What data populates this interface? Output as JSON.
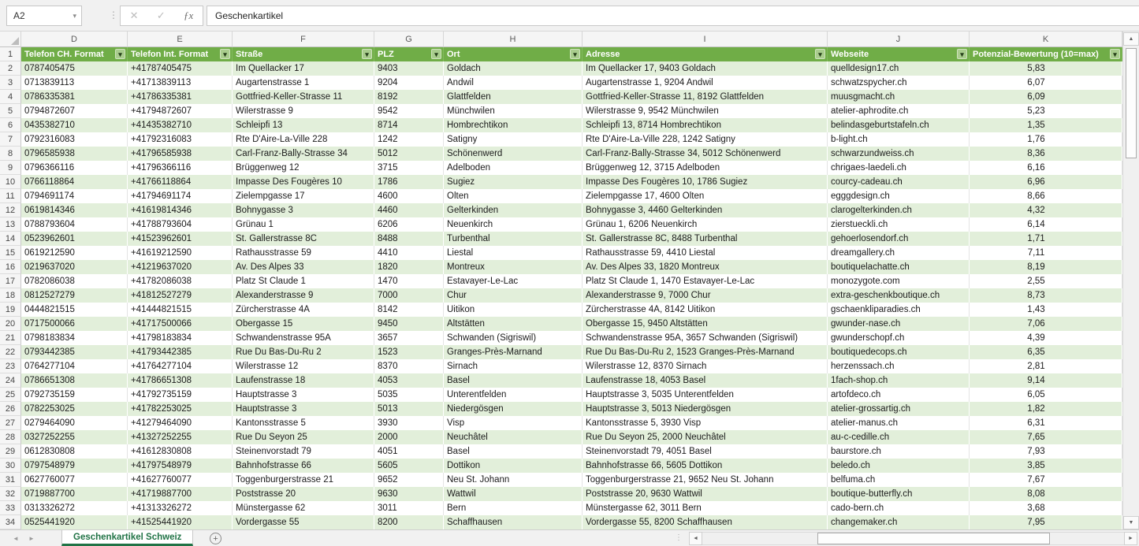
{
  "formula_bar": {
    "name_box": "A2",
    "formula": "Geschenkartikel"
  },
  "icons": {
    "name_box_dropdown": "▾",
    "separator_dots": "⋮",
    "cancel": "✕",
    "confirm": "✓",
    "fx": "ƒx",
    "filter_dropdown": "▾",
    "sheet_nav_left": "◄",
    "sheet_nav_right": "►",
    "add_sheet": "+",
    "scroll_up": "▲",
    "scroll_down": "▼",
    "scroll_left": "◄",
    "scroll_right": "►",
    "grip_dots": "⋮"
  },
  "colors": {
    "table_header_green": "#70AD47",
    "band_green": "#E2EFDA",
    "active_tab_green": "#217346"
  },
  "sheet_tabs": {
    "active": "Geschenkartikel Schweiz"
  },
  "grid": {
    "column_letters": [
      "D",
      "E",
      "F",
      "G",
      "H",
      "I",
      "J",
      "K"
    ],
    "headers": [
      "Telefon CH. Format",
      "Telefon Int. Format",
      "Straße",
      "PLZ",
      "Ort",
      "Adresse",
      "Webseite",
      "Potenzial-Bewertung (10=max)"
    ],
    "rows": [
      [
        "0787405475",
        "+41787405475",
        "Im Quellacker 17",
        "9403",
        "Goldach",
        "Im Quellacker 17, 9403 Goldach",
        "quelldesign17.ch",
        "5,83"
      ],
      [
        "0713839113",
        "+41713839113",
        "Augartenstrasse 1",
        "9204",
        "Andwil",
        "Augartenstrasse 1, 9204 Andwil",
        "schwatzspycher.ch",
        "6,07"
      ],
      [
        "0786335381",
        "+41786335381",
        "Gottfried-Keller-Strasse 11",
        "8192",
        "Glattfelden",
        "Gottfried-Keller-Strasse 11, 8192 Glattfelden",
        "muusgmacht.ch",
        "6,09"
      ],
      [
        "0794872607",
        "+41794872607",
        "Wilerstrasse 9",
        "9542",
        "Münchwilen",
        "Wilerstrasse 9, 9542 Münchwilen",
        "atelier-aphrodite.ch",
        "5,23"
      ],
      [
        "0435382710",
        "+41435382710",
        "Schleipfi 13",
        "8714",
        "Hombrechtikon",
        "Schleipfi 13, 8714 Hombrechtikon",
        "belindasgeburtstafeln.ch",
        "1,35"
      ],
      [
        "0792316083",
        "+41792316083",
        "Rte D'Aire-La-Ville 228",
        "1242",
        "Satigny",
        "Rte D'Aire-La-Ville 228, 1242 Satigny",
        "b-light.ch",
        "1,76"
      ],
      [
        "0796585938",
        "+41796585938",
        "Carl-Franz-Bally-Strasse 34",
        "5012",
        "Schönenwerd",
        "Carl-Franz-Bally-Strasse 34, 5012 Schönenwerd",
        "schwarzundweiss.ch",
        "8,36"
      ],
      [
        "0796366116",
        "+41796366116",
        "Brüggenweg 12",
        "3715",
        "Adelboden",
        "Brüggenweg 12, 3715 Adelboden",
        "chrigaes-laedeli.ch",
        "6,16"
      ],
      [
        "0766118864",
        "+41766118864",
        "Impasse Des Fougères 10",
        "1786",
        "Sugiez",
        "Impasse Des Fougères 10, 1786 Sugiez",
        "courcy-cadeau.ch",
        "6,96"
      ],
      [
        "0794691174",
        "+41794691174",
        "Zielempgasse 17",
        "4600",
        "Olten",
        "Zielempgasse 17, 4600 Olten",
        "egggdesign.ch",
        "8,66"
      ],
      [
        "0619814346",
        "+41619814346",
        "Bohnygasse 3",
        "4460",
        "Gelterkinden",
        "Bohnygasse 3, 4460 Gelterkinden",
        "clarogelterkinden.ch",
        "4,32"
      ],
      [
        "0788793604",
        "+41788793604",
        "Grünau 1",
        "6206",
        "Neuenkirch",
        "Grünau 1, 6206 Neuenkirch",
        "zierstueckli.ch",
        "6,14"
      ],
      [
        "0523962601",
        "+41523962601",
        "St. Gallerstrasse 8C",
        "8488",
        "Turbenthal",
        "St. Gallerstrasse 8C, 8488 Turbenthal",
        "gehoerlosendorf.ch",
        "1,71"
      ],
      [
        "0619212590",
        "+41619212590",
        "Rathausstrasse 59",
        "4410",
        "Liestal",
        "Rathausstrasse 59, 4410 Liestal",
        "dreamgallery.ch",
        "7,11"
      ],
      [
        "0219637020",
        "+41219637020",
        "Av. Des Alpes 33",
        "1820",
        "Montreux",
        "Av. Des Alpes 33, 1820 Montreux",
        "boutiquelachatte.ch",
        "8,19"
      ],
      [
        "0782086038",
        "+41782086038",
        "Platz St Claude 1",
        "1470",
        "Estavayer-Le-Lac",
        "Platz St Claude 1, 1470 Estavayer-Le-Lac",
        "monozygote.com",
        "2,55"
      ],
      [
        "0812527279",
        "+41812527279",
        "Alexanderstrasse 9",
        "7000",
        "Chur",
        "Alexanderstrasse 9, 7000 Chur",
        "extra-geschenkboutique.ch",
        "8,73"
      ],
      [
        "0444821515",
        "+41444821515",
        "Zürcherstrasse 4A",
        "8142",
        "Uitikon",
        "Zürcherstrasse 4A, 8142 Uitikon",
        "gschaenkliparadies.ch",
        "1,43"
      ],
      [
        "0717500066",
        "+41717500066",
        "Obergasse 15",
        "9450",
        "Altstätten",
        "Obergasse 15, 9450 Altstätten",
        "gwunder-nase.ch",
        "7,06"
      ],
      [
        "0798183834",
        "+41798183834",
        "Schwandenstrasse 95A",
        "3657",
        "Schwanden (Sigriswil)",
        "Schwandenstrasse 95A, 3657 Schwanden (Sigriswil)",
        "gwunderschopf.ch",
        "4,39"
      ],
      [
        "0793442385",
        "+41793442385",
        "Rue Du Bas-Du-Ru 2",
        "1523",
        "Granges-Près-Marnand",
        "Rue Du Bas-Du-Ru 2, 1523 Granges-Près-Marnand",
        "boutiquedecops.ch",
        "6,35"
      ],
      [
        "0764277104",
        "+41764277104",
        "Wilerstrasse 12",
        "8370",
        "Sirnach",
        "Wilerstrasse 12, 8370 Sirnach",
        "herzenssach.ch",
        "2,81"
      ],
      [
        "0786651308",
        "+41786651308",
        "Laufenstrasse 18",
        "4053",
        "Basel",
        "Laufenstrasse 18, 4053 Basel",
        "1fach-shop.ch",
        "9,14"
      ],
      [
        "0792735159",
        "+41792735159",
        "Hauptstrasse 3",
        "5035",
        "Unterentfelden",
        "Hauptstrasse 3, 5035 Unterentfelden",
        "artofdeco.ch",
        "6,05"
      ],
      [
        "0782253025",
        "+41782253025",
        "Hauptstrasse 3",
        "5013",
        "Niedergösgen",
        "Hauptstrasse 3, 5013 Niedergösgen",
        "atelier-grossartig.ch",
        "1,82"
      ],
      [
        "0279464090",
        "+41279464090",
        "Kantonsstrasse 5",
        "3930",
        "Visp",
        "Kantonsstrasse 5, 3930 Visp",
        "atelier-manus.ch",
        "6,31"
      ],
      [
        "0327252255",
        "+41327252255",
        "Rue Du Seyon 25",
        "2000",
        "Neuchâtel",
        "Rue Du Seyon 25, 2000 Neuchâtel",
        "au-c-cedille.ch",
        "7,65"
      ],
      [
        "0612830808",
        "+41612830808",
        "Steinenvorstadt 79",
        "4051",
        "Basel",
        "Steinenvorstadt 79, 4051 Basel",
        "baurstore.ch",
        "7,93"
      ],
      [
        "0797548979",
        "+41797548979",
        "Bahnhofstrasse 66",
        "5605",
        "Dottikon",
        "Bahnhofstrasse 66, 5605 Dottikon",
        "beledo.ch",
        "3,85"
      ],
      [
        "0627760077",
        "+41627760077",
        "Toggenburgerstrasse 21",
        "9652",
        "Neu St. Johann",
        "Toggenburgerstrasse 21, 9652 Neu St. Johann",
        "belfuma.ch",
        "7,67"
      ],
      [
        "0719887700",
        "+41719887700",
        "Poststrasse 20",
        "9630",
        "Wattwil",
        "Poststrasse 20, 9630 Wattwil",
        "boutique-butterfly.ch",
        "8,08"
      ],
      [
        "0313326272",
        "+41313326272",
        "Münstergasse 62",
        "3011",
        "Bern",
        "Münstergasse 62, 3011 Bern",
        "cado-bern.ch",
        "3,68"
      ],
      [
        "0525441920",
        "+41525441920",
        "Vordergasse 55",
        "8200",
        "Schaffhausen",
        "Vordergasse 55, 8200 Schaffhausen",
        "changemaker.ch",
        "7,95"
      ]
    ]
  }
}
